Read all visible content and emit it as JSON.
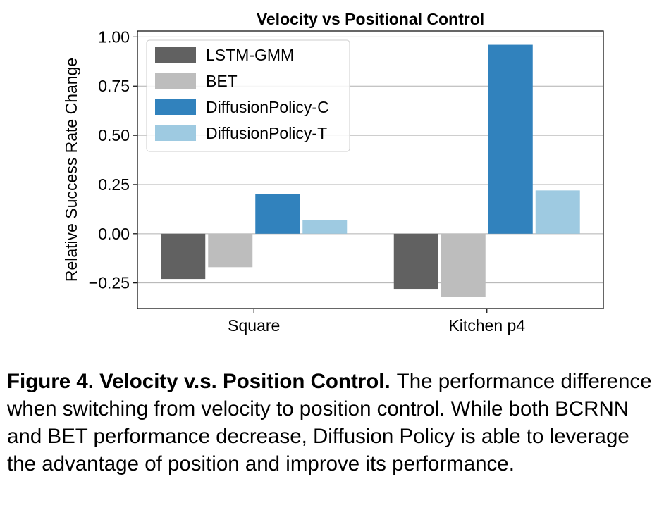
{
  "chart_data": {
    "type": "bar",
    "title": "Velocity vs Positional Control",
    "xlabel": "",
    "ylabel": "Relative Success Rate Change",
    "categories": [
      "Square",
      "Kitchen p4"
    ],
    "series": [
      {
        "name": "LSTM-GMM",
        "color": "#616161",
        "values": [
          -0.23,
          -0.28
        ]
      },
      {
        "name": "BET",
        "color": "#bdbdbd",
        "values": [
          -0.17,
          -0.32
        ]
      },
      {
        "name": "DiffusionPolicy-C",
        "color": "#3182bd",
        "values": [
          0.2,
          0.96
        ]
      },
      {
        "name": "DiffusionPolicy-T",
        "color": "#9ecae1",
        "values": [
          0.07,
          0.22
        ]
      }
    ],
    "ylim": [
      -0.38,
      1.03
    ],
    "yticks": [
      -0.25,
      0.0,
      0.25,
      0.5,
      0.75,
      1.0
    ],
    "ytick_labels": [
      "−0.25",
      "0.00",
      "0.25",
      "0.50",
      "0.75",
      "1.00"
    ],
    "grid": "horizontal",
    "legend_position": "top-left"
  },
  "caption": {
    "label": "Figure 4.  Velocity v.s. Position Control.",
    "text": "The performance difference when switching from velocity to position control. While both BCRNN and BET performance decrease, Diffusion Policy is able to leverage the advantage of position and improve its performance."
  }
}
